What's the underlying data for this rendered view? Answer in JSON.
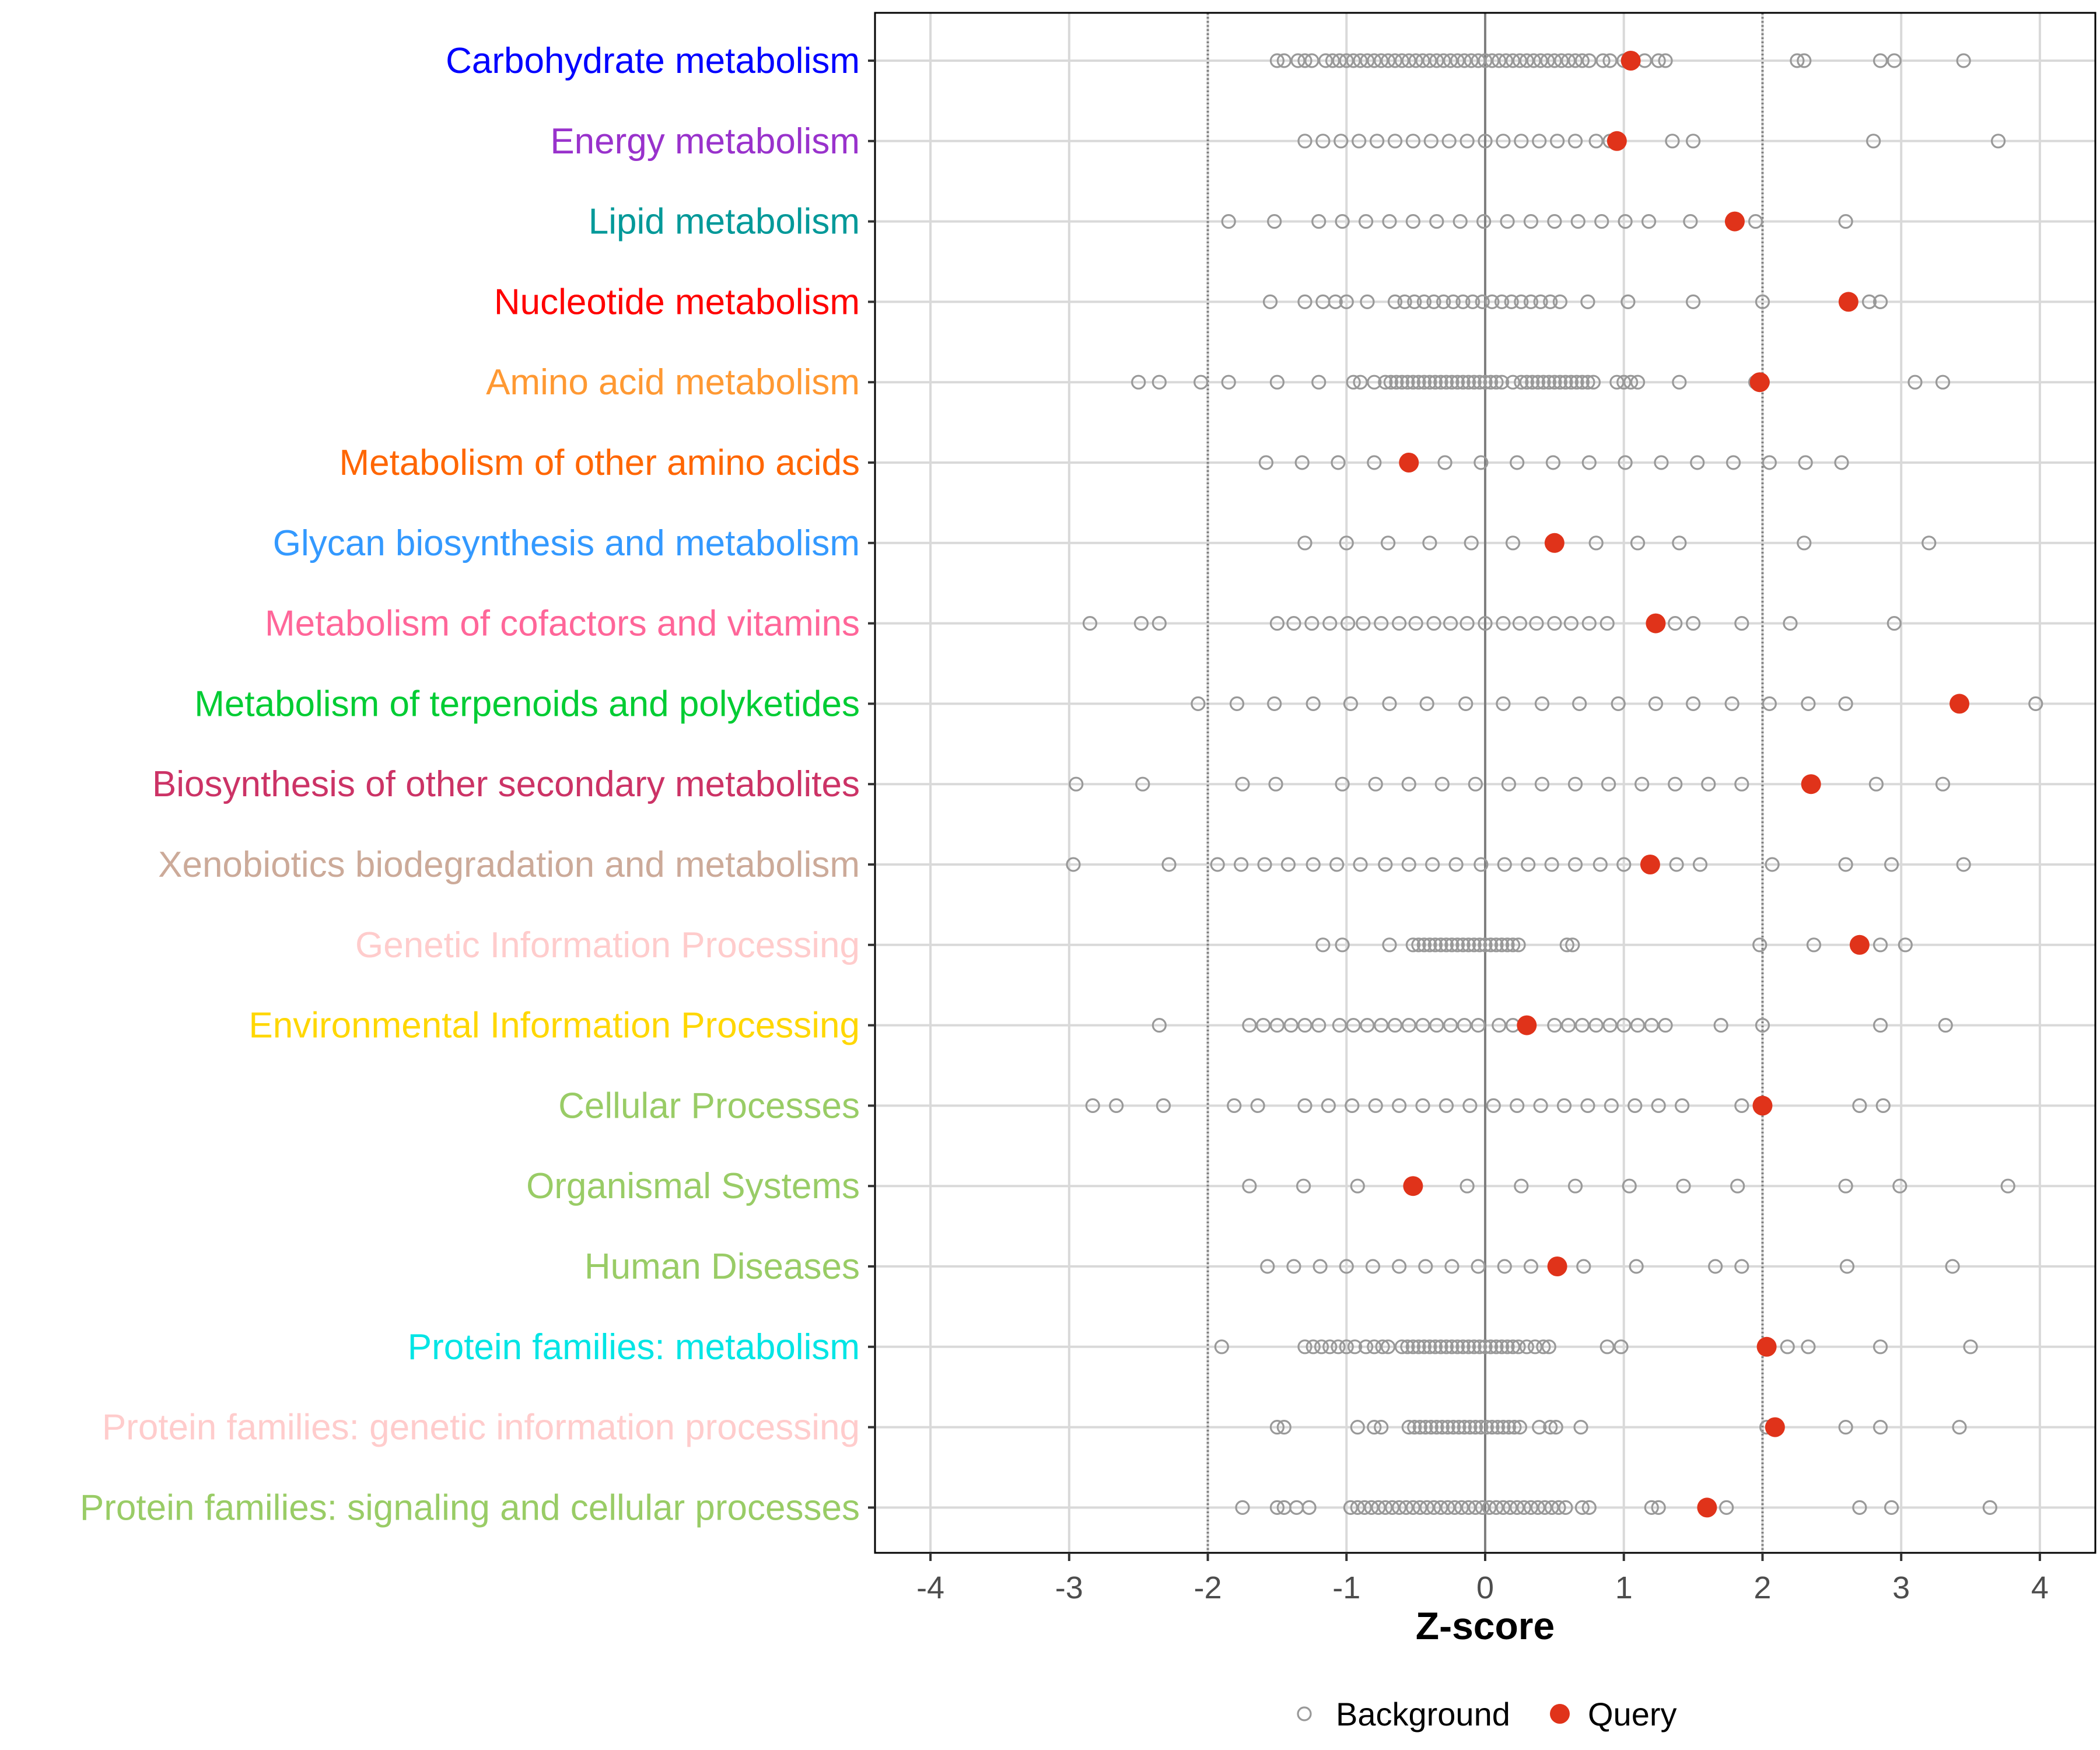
{
  "chart_data": {
    "type": "scatter",
    "xlabel": "Z-score",
    "xlim": [
      -4.4,
      4.4
    ],
    "x_ticks": [
      -4,
      -3,
      -2,
      -1,
      0,
      1,
      2,
      3,
      4
    ],
    "x_tick_labels": [
      "-4",
      "-3",
      "-2",
      "-1",
      "0",
      "1",
      "2",
      "3",
      "4"
    ],
    "reference_lines": [
      -2,
      0,
      2
    ],
    "grid": true,
    "legend_position": "bottom",
    "legend": [
      {
        "name": "Background",
        "marker": "open-circle",
        "color": "#999999"
      },
      {
        "name": "Query",
        "marker": "filled-circle",
        "color": "#E0331A"
      }
    ],
    "categories": [
      {
        "label": "Carbohydrate metabolism",
        "color": "#0000FF",
        "query": 1.05,
        "background": [
          -1.5,
          -1.45,
          -1.35,
          -1.3,
          -1.25,
          -1.15,
          -1.1,
          -1.05,
          -1.0,
          -0.95,
          -0.9,
          -0.85,
          -0.8,
          -0.75,
          -0.7,
          -0.65,
          -0.6,
          -0.55,
          -0.5,
          -0.45,
          -0.4,
          -0.35,
          -0.3,
          -0.25,
          -0.2,
          -0.15,
          -0.1,
          -0.05,
          0.0,
          0.05,
          0.1,
          0.15,
          0.2,
          0.25,
          0.3,
          0.35,
          0.4,
          0.45,
          0.5,
          0.55,
          0.6,
          0.65,
          0.7,
          0.75,
          0.85,
          0.9,
          1.0,
          1.15,
          1.25,
          1.3,
          2.25,
          2.3,
          2.85,
          2.95,
          3.45
        ]
      },
      {
        "label": "Energy metabolism",
        "color": "#9932CC",
        "query": 0.95,
        "background": [
          -1.3,
          -1.17,
          -1.04,
          -0.91,
          -0.78,
          -0.65,
          -0.52,
          -0.39,
          -0.26,
          -0.13,
          0.0,
          0.13,
          0.26,
          0.39,
          0.52,
          0.65,
          0.8,
          0.9,
          1.35,
          1.5,
          2.8,
          3.7
        ]
      },
      {
        "label": "Lipid metabolism",
        "color": "#009999",
        "query": 1.8,
        "background": [
          -1.85,
          -1.52,
          -1.2,
          -1.03,
          -0.86,
          -0.69,
          -0.52,
          -0.35,
          -0.18,
          -0.01,
          0.16,
          0.33,
          0.5,
          0.67,
          0.84,
          1.01,
          1.18,
          1.48,
          1.95,
          2.6
        ]
      },
      {
        "label": "Nucleotide metabolism",
        "color": "#FF0000",
        "query": 2.62,
        "background": [
          -1.55,
          -1.3,
          -1.17,
          -1.08,
          -1.0,
          -0.85,
          -0.65,
          -0.58,
          -0.51,
          -0.44,
          -0.37,
          -0.3,
          -0.23,
          -0.16,
          -0.09,
          -0.02,
          0.05,
          0.12,
          0.19,
          0.26,
          0.33,
          0.4,
          0.47,
          0.54,
          0.74,
          1.03,
          1.5,
          2.0,
          2.77,
          2.85
        ]
      },
      {
        "label": "Amino acid metabolism",
        "color": "#FF9933",
        "query": 1.98,
        "background": [
          -2.5,
          -2.35,
          -2.05,
          -1.85,
          -1.5,
          -1.2,
          -0.95,
          -0.9,
          -0.8,
          -0.72,
          -0.68,
          -0.64,
          -0.6,
          -0.56,
          -0.52,
          -0.48,
          -0.44,
          -0.4,
          -0.36,
          -0.32,
          -0.28,
          -0.24,
          -0.2,
          -0.16,
          -0.12,
          -0.08,
          -0.04,
          0.0,
          0.04,
          0.08,
          0.12,
          0.2,
          0.26,
          0.3,
          0.34,
          0.38,
          0.42,
          0.46,
          0.5,
          0.54,
          0.58,
          0.62,
          0.66,
          0.7,
          0.74,
          0.78,
          0.95,
          1.0,
          1.05,
          1.1,
          1.4,
          1.95,
          2.0,
          3.1,
          3.3
        ]
      },
      {
        "label": "Metabolism of other amino acids",
        "color": "#FF6600",
        "query": -0.55,
        "background": [
          -1.58,
          -1.32,
          -1.06,
          -0.8,
          -0.29,
          -0.03,
          0.23,
          0.49,
          0.75,
          1.01,
          1.27,
          1.53,
          1.79,
          2.05,
          2.31,
          2.57
        ]
      },
      {
        "label": "Glycan biosynthesis and metabolism",
        "color": "#3399FF",
        "query": 0.5,
        "background": [
          -1.3,
          -1.0,
          -0.7,
          -0.4,
          -0.1,
          0.2,
          0.8,
          1.1,
          1.4,
          2.3,
          3.2
        ]
      },
      {
        "label": "Metabolism of cofactors and vitamins",
        "color": "#FF6699",
        "query": 1.23,
        "background": [
          -2.85,
          -2.48,
          -2.35,
          -1.5,
          -1.38,
          -1.25,
          -1.12,
          -0.99,
          -0.88,
          -0.75,
          -0.62,
          -0.5,
          -0.37,
          -0.25,
          -0.13,
          0.0,
          0.13,
          0.25,
          0.37,
          0.5,
          0.62,
          0.75,
          0.88,
          1.37,
          1.5,
          1.85,
          2.2,
          2.95
        ]
      },
      {
        "label": "Metabolism of terpenoids and polyketides",
        "color": "#00CC33",
        "query": 3.42,
        "background": [
          -2.07,
          -1.79,
          -1.52,
          -1.24,
          -0.97,
          -0.69,
          -0.42,
          -0.14,
          0.13,
          0.41,
          0.68,
          0.96,
          1.23,
          1.5,
          1.78,
          2.05,
          2.33,
          2.6,
          3.97
        ]
      },
      {
        "label": "Biosynthesis of other secondary metabolites",
        "color": "#CC3366",
        "query": 2.35,
        "background": [
          -2.95,
          -2.47,
          -1.75,
          -1.51,
          -1.03,
          -0.79,
          -0.55,
          -0.31,
          -0.07,
          0.17,
          0.41,
          0.65,
          0.89,
          1.13,
          1.37,
          1.61,
          1.85,
          2.82,
          3.3
        ]
      },
      {
        "label": "Xenobiotics biodegradation and metabolism",
        "color": "#CCAA99",
        "query": 1.19,
        "background": [
          -2.97,
          -2.28,
          -1.93,
          -1.76,
          -1.59,
          -1.42,
          -1.24,
          -1.07,
          -0.9,
          -0.72,
          -0.55,
          -0.38,
          -0.21,
          -0.03,
          0.14,
          0.31,
          0.48,
          0.65,
          0.83,
          1.0,
          1.38,
          1.55,
          2.07,
          2.6,
          2.93,
          3.45
        ]
      },
      {
        "label": "Genetic Information Processing",
        "color": "#FFCCCC",
        "query": 2.7,
        "background": [
          -1.17,
          -1.03,
          -0.69,
          -0.52,
          -0.48,
          -0.44,
          -0.4,
          -0.36,
          -0.32,
          -0.28,
          -0.24,
          -0.2,
          -0.16,
          -0.12,
          -0.08,
          -0.04,
          0.0,
          0.04,
          0.08,
          0.12,
          0.16,
          0.2,
          0.24,
          0.59,
          0.63,
          1.98,
          2.37,
          2.85,
          3.03
        ]
      },
      {
        "label": "Environmental Information Processing",
        "color": "#FFD700",
        "query": 0.3,
        "background": [
          -2.35,
          -1.7,
          -1.6,
          -1.5,
          -1.4,
          -1.3,
          -1.2,
          -1.05,
          -0.95,
          -0.85,
          -0.75,
          -0.65,
          -0.55,
          -0.45,
          -0.35,
          -0.25,
          -0.15,
          -0.05,
          0.1,
          0.2,
          0.5,
          0.6,
          0.7,
          0.8,
          0.9,
          1.0,
          1.1,
          1.2,
          1.3,
          1.7,
          2.0,
          2.85,
          3.32
        ]
      },
      {
        "label": "Cellular Processes",
        "color": "#99CC66",
        "query": 2.0,
        "background": [
          -2.83,
          -2.66,
          -2.32,
          -1.81,
          -1.64,
          -1.3,
          -1.13,
          -0.96,
          -0.79,
          -0.62,
          -0.45,
          -0.28,
          -0.11,
          0.06,
          0.23,
          0.4,
          0.57,
          0.74,
          0.91,
          1.08,
          1.25,
          1.42,
          1.85,
          2.7,
          2.87
        ]
      },
      {
        "label": "Organismal Systems",
        "color": "#99CC66",
        "query": -0.52,
        "background": [
          -1.7,
          -1.31,
          -0.92,
          -0.13,
          0.26,
          0.65,
          1.04,
          1.43,
          1.82,
          2.6,
          2.99,
          3.77
        ]
      },
      {
        "label": "Human Diseases",
        "color": "#99CC66",
        "query": 0.52,
        "background": [
          -1.57,
          -1.38,
          -1.19,
          -1.0,
          -0.81,
          -0.62,
          -0.43,
          -0.24,
          -0.05,
          0.14,
          0.33,
          0.71,
          1.09,
          1.66,
          1.85,
          2.61,
          3.37
        ]
      },
      {
        "label": "Protein families: metabolism",
        "color": "#00E5E5",
        "query": 2.03,
        "background": [
          -1.9,
          -1.3,
          -1.24,
          -1.18,
          -1.12,
          -1.06,
          -1.0,
          -0.94,
          -0.86,
          -0.8,
          -0.74,
          -0.7,
          -0.6,
          -0.56,
          -0.52,
          -0.48,
          -0.44,
          -0.4,
          -0.36,
          -0.32,
          -0.28,
          -0.24,
          -0.2,
          -0.16,
          -0.12,
          -0.08,
          -0.04,
          0.0,
          0.04,
          0.08,
          0.12,
          0.16,
          0.2,
          0.24,
          0.3,
          0.36,
          0.42,
          0.46,
          0.88,
          0.98,
          2.18,
          2.33,
          2.85,
          3.5
        ]
      },
      {
        "label": "Protein families: genetic information processing",
        "color": "#FFCCCC",
        "query": 2.09,
        "background": [
          -1.5,
          -1.45,
          -0.92,
          -0.8,
          -0.75,
          -0.55,
          -0.51,
          -0.47,
          -0.43,
          -0.39,
          -0.35,
          -0.31,
          -0.27,
          -0.23,
          -0.19,
          -0.15,
          -0.11,
          -0.07,
          -0.03,
          0.01,
          0.05,
          0.09,
          0.13,
          0.17,
          0.21,
          0.25,
          0.39,
          0.47,
          0.51,
          0.69,
          2.03,
          2.6,
          2.85,
          3.42
        ]
      },
      {
        "label": "Protein families: signaling and cellular processes",
        "color": "#99CC66",
        "query": 1.6,
        "background": [
          -1.75,
          -1.5,
          -1.45,
          -1.36,
          -1.27,
          -0.97,
          -0.92,
          -0.87,
          -0.82,
          -0.77,
          -0.72,
          -0.67,
          -0.62,
          -0.57,
          -0.52,
          -0.47,
          -0.42,
          -0.37,
          -0.32,
          -0.27,
          -0.22,
          -0.17,
          -0.12,
          -0.07,
          -0.02,
          0.03,
          0.08,
          0.13,
          0.18,
          0.23,
          0.28,
          0.33,
          0.38,
          0.43,
          0.48,
          0.53,
          0.58,
          0.7,
          0.75,
          1.2,
          1.25,
          1.74,
          2.7,
          2.93,
          3.64
        ]
      }
    ]
  }
}
